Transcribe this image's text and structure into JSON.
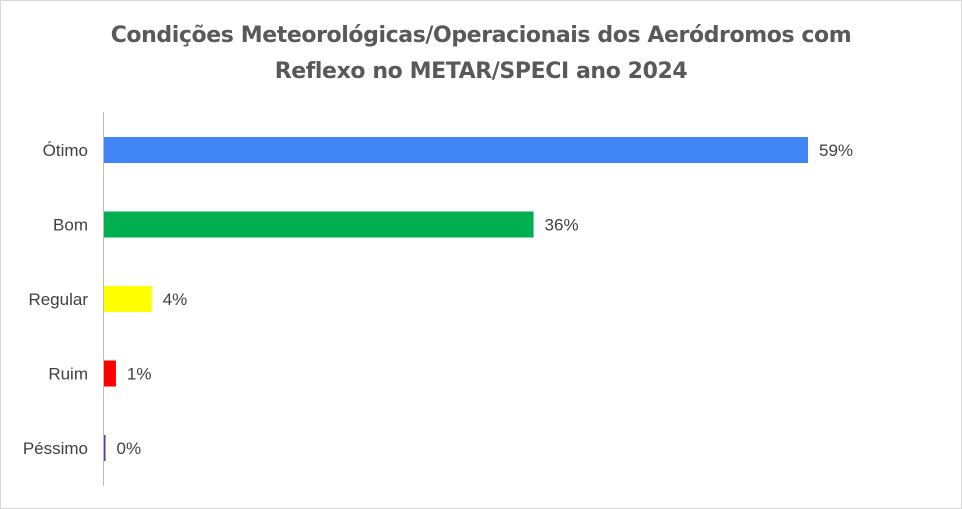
{
  "chart_data": {
    "type": "bar",
    "orientation": "horizontal",
    "title": "Condições Meteorológicas/Operacionais dos Aeródromos com Reflexo no METAR/SPECI ano 2024",
    "title_lines": [
      "Condições Meteorológicas/Operacionais dos Aeródromos com",
      "Reflexo no METAR/SPECI ano 2024"
    ],
    "categories": [
      "Ótimo",
      "Bom",
      "Regular",
      "Ruim",
      "Péssimo"
    ],
    "values": [
      59,
      36,
      4,
      1,
      0
    ],
    "value_labels": [
      "59%",
      "36%",
      "4%",
      "1%",
      "0%"
    ],
    "colors": [
      "#4285F4",
      "#00B050",
      "#FFFF00",
      "#FF0000",
      "#7030A0"
    ],
    "xlim": [
      0,
      59
    ],
    "grid": false,
    "legend": "none",
    "xlabel": "",
    "ylabel": ""
  }
}
